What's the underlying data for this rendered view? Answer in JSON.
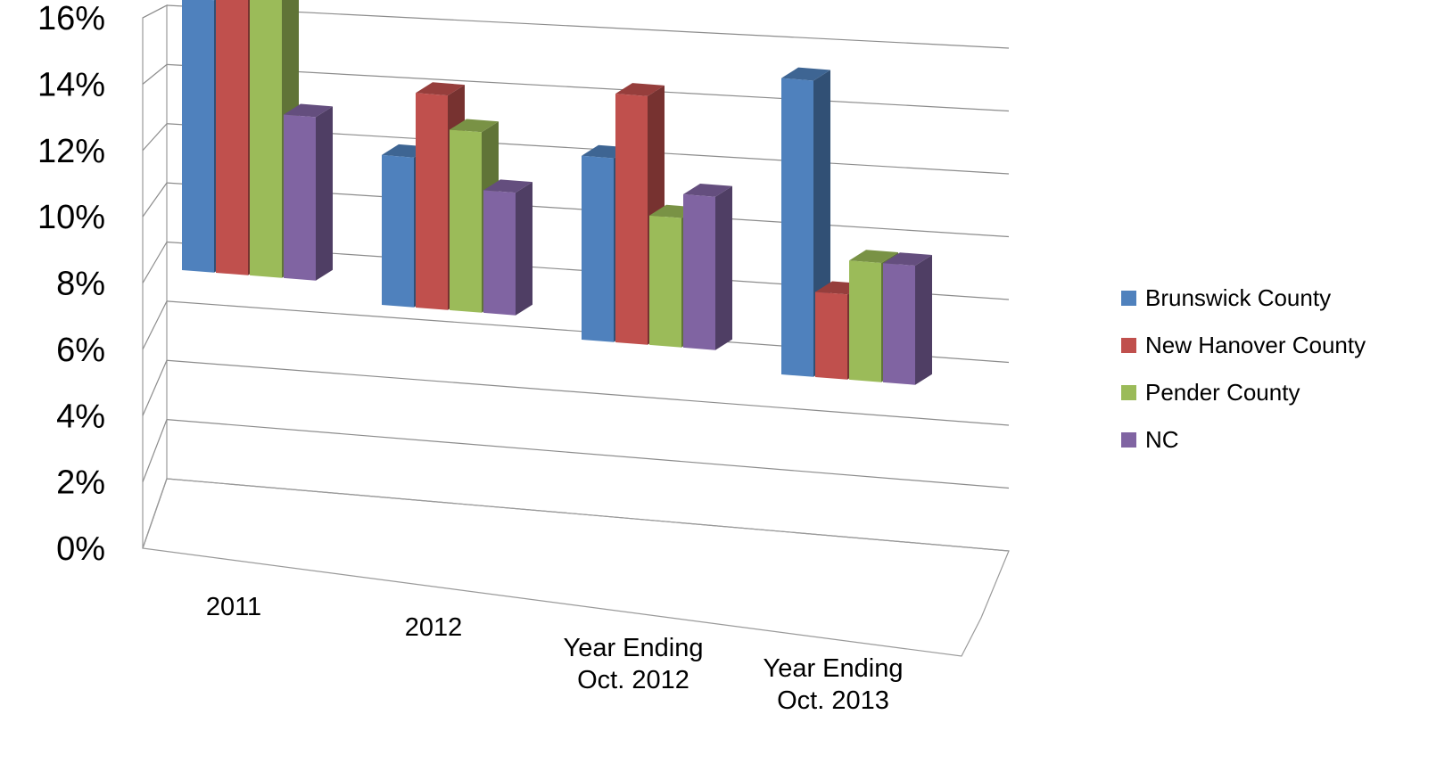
{
  "chart_data": {
    "type": "bar",
    "categories": [
      "2011",
      "2012",
      "Year Ending Oct. 2012",
      "Year Ending Oct. 2013"
    ],
    "category_lines": [
      [
        "2011"
      ],
      [
        "2012"
      ],
      [
        "Year Ending",
        "Oct. 2012"
      ],
      [
        "Year Ending",
        "Oct. 2013"
      ]
    ],
    "series": [
      {
        "name": "Brunswick County",
        "values": [
          8.0,
          4.4,
          5.4,
          8.7
        ]
      },
      {
        "name": "New Hanover County",
        "values": [
          11.3,
          6.3,
          7.3,
          2.5
        ]
      },
      {
        "name": "Pender County",
        "values": [
          15.8,
          5.3,
          3.8,
          3.5
        ]
      },
      {
        "name": "NC",
        "values": [
          4.8,
          3.6,
          4.5,
          3.5
        ]
      }
    ],
    "ylim": [
      0,
      16
    ],
    "ytick_labels": [
      "0%",
      "2%",
      "4%",
      "6%",
      "8%",
      "10%",
      "12%",
      "14%",
      "16%"
    ],
    "grid": true,
    "legend_position": "right",
    "colors": [
      "#4F81BD",
      "#C0504D",
      "#9BBB59",
      "#8064A2"
    ],
    "title": "",
    "xlabel": "",
    "ylabel": ""
  }
}
